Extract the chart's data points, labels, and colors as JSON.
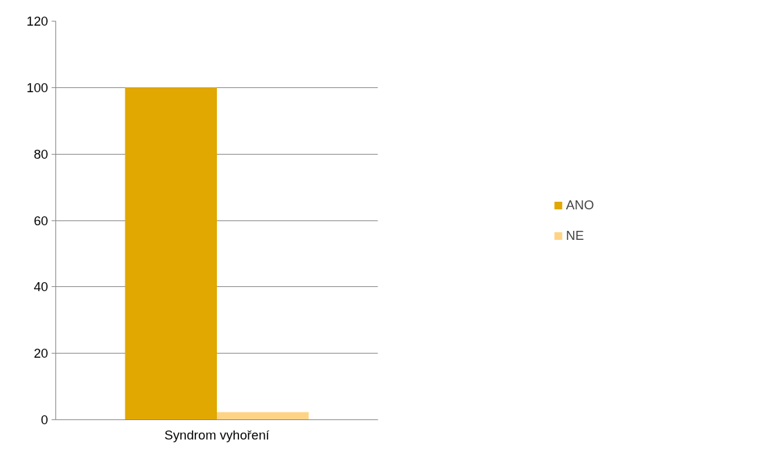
{
  "chart_data": {
    "type": "bar",
    "categories": [
      "Syndrom vyhoření"
    ],
    "series": [
      {
        "name": "ANO",
        "color": "#e0a800",
        "values": [
          100
        ]
      },
      {
        "name": "NE",
        "color": "#ffd386",
        "values": [
          2.3
        ]
      }
    ],
    "ylim": [
      0,
      120
    ],
    "yticks": [
      0,
      20,
      40,
      60,
      80,
      100,
      120
    ],
    "grid": "y",
    "legend": "right"
  }
}
